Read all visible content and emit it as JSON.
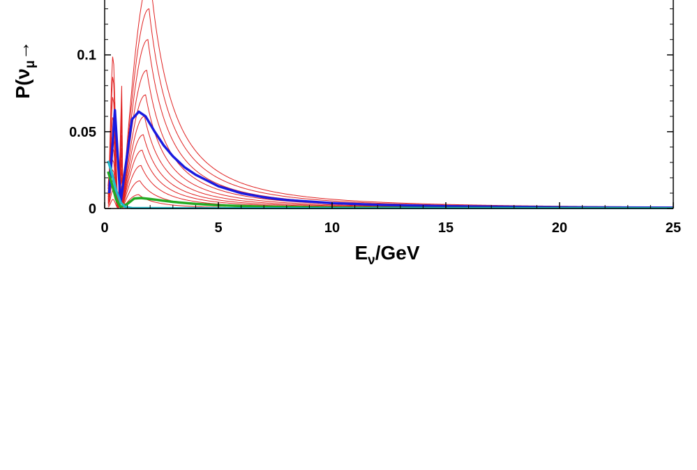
{
  "chart_data": {
    "type": "line",
    "xlabel": "Eν/GeV",
    "xlabel_main": "E",
    "xlabel_sub": "ν",
    "xlabel_rest": "/GeV",
    "ylabel": "P(νμ→",
    "ylabel_main": "P(ν",
    "ylabel_sub": "μ",
    "ylabel_rest": "→",
    "xlim": [
      0,
      25
    ],
    "ylim": [
      0,
      0.138
    ],
    "x_ticks": [
      0,
      5,
      10,
      15,
      20,
      25
    ],
    "x_tick_labels": [
      "0",
      "5",
      "10",
      "15",
      "20",
      "25"
    ],
    "y_ticks": [
      0,
      0.05,
      0.1
    ],
    "y_tick_labels": [
      "0",
      "0.05",
      "0.1"
    ],
    "grid": false,
    "red_curve_peaks": [
      0.009,
      0.018,
      0.028,
      0.038,
      0.048,
      0.06,
      0.074,
      0.09,
      0.11,
      0.13,
      0.15
    ],
    "series": [
      {
        "color": "#1a1adf",
        "x": [
          0.2,
          0.45,
          0.7,
          1.0,
          1.2,
          1.5,
          1.8,
          2.2,
          2.6,
          3.0,
          3.5,
          4.0,
          5.0,
          6.0,
          7.0,
          8.0,
          10.0,
          12.0,
          15.0,
          20.0,
          25.0
        ],
        "y": [
          0.01,
          0.064,
          0.004,
          0.036,
          0.058,
          0.063,
          0.06,
          0.05,
          0.041,
          0.034,
          0.027,
          0.022,
          0.0145,
          0.01,
          0.0073,
          0.0055,
          0.0035,
          0.0024,
          0.0015,
          0.0008,
          0.0005
        ]
      },
      {
        "color": "#22aa22",
        "x": [
          0.15,
          0.3,
          0.5,
          0.7,
          1.0,
          1.3,
          1.6,
          2.0,
          2.5,
          3.0,
          4.0,
          5.0,
          7.0,
          10.0,
          15.0,
          25.0
        ],
        "y": [
          0.024,
          0.017,
          0.006,
          0.001,
          0.003,
          0.0065,
          0.0068,
          0.0062,
          0.0052,
          0.0043,
          0.003,
          0.0021,
          0.0012,
          0.0006,
          0.0003,
          0.0001
        ]
      },
      {
        "color": "#22bbcc",
        "x": [
          0.15,
          0.3,
          0.5,
          0.7,
          0.9,
          1.2,
          2.0,
          5.0,
          25.0
        ],
        "y": [
          0.031,
          0.024,
          0.012,
          0.004,
          0.001,
          0.0003,
          0.0002,
          0.0001,
          0.0
        ]
      }
    ]
  }
}
